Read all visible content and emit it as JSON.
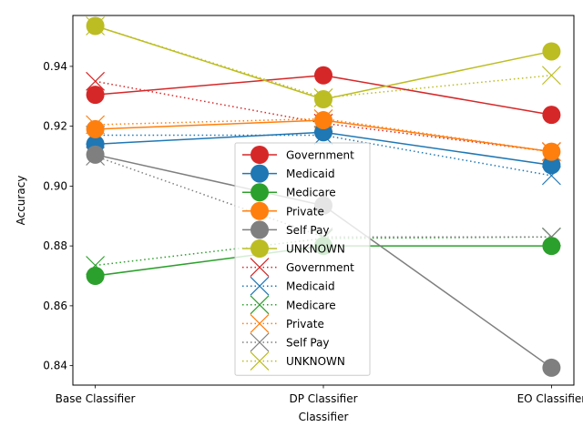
{
  "chart_data": {
    "type": "line",
    "xlabel": "Classifier",
    "ylabel": "Accuracy",
    "categories": [
      "Base Classifier",
      "DP Classifier",
      "EO Classifier"
    ],
    "ylim": [
      0.8335,
      0.957
    ],
    "yticks": [
      "0.84",
      "0.86",
      "0.88",
      "0.90",
      "0.92",
      "0.94"
    ],
    "ytick_values": [
      0.84,
      0.86,
      0.88,
      0.9,
      0.92,
      0.94
    ],
    "grid": false,
    "legend_position": "center-bottom",
    "series_solid": [
      {
        "name": "Government",
        "color": "#d62728",
        "values": [
          0.9305,
          0.937,
          0.9238
        ]
      },
      {
        "name": "Medicaid",
        "color": "#1f77b4",
        "values": [
          0.914,
          0.918,
          0.907
        ]
      },
      {
        "name": "Medicare",
        "color": "#2ca02c",
        "values": [
          0.87,
          0.88,
          0.88
        ]
      },
      {
        "name": "Private",
        "color": "#ff7f0e",
        "values": [
          0.919,
          0.922,
          0.9115
        ]
      },
      {
        "name": "Self Pay",
        "color": "#7f7f7f",
        "values": [
          0.9105,
          0.8935,
          0.8393
        ]
      },
      {
        "name": "UNKNOWN",
        "color": "#bcbd22",
        "values": [
          0.9535,
          0.929,
          0.945
        ]
      }
    ],
    "series_dotted": [
      {
        "name": "Government",
        "color": "#d62728",
        "values": [
          0.935,
          0.921,
          0.9115
        ]
      },
      {
        "name": "Medicaid",
        "color": "#1f77b4",
        "values": [
          0.917,
          0.917,
          0.9035
        ]
      },
      {
        "name": "Medicare",
        "color": "#2ca02c",
        "values": [
          0.8735,
          0.8825,
          0.883
        ]
      },
      {
        "name": "Private",
        "color": "#ff7f0e",
        "values": [
          0.9205,
          0.9225,
          0.9115
        ]
      },
      {
        "name": "Self Pay",
        "color": "#7f7f7f",
        "values": [
          0.91,
          0.883,
          0.883
        ]
      },
      {
        "name": "UNKNOWN",
        "color": "#bcbd22",
        "values": [
          0.9535,
          0.9295,
          0.937
        ]
      }
    ]
  }
}
